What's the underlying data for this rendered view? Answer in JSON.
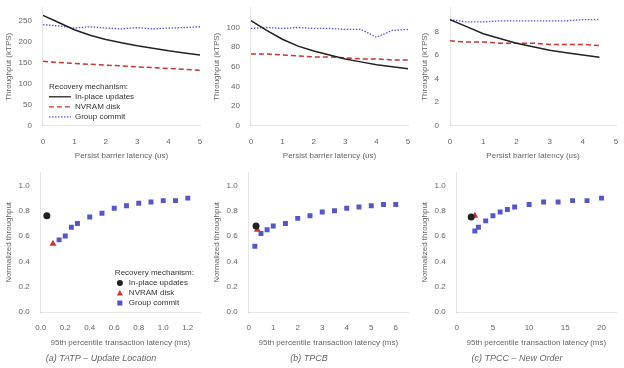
{
  "chart_data": [
    {
      "type": "line",
      "x": [
        0,
        0.5,
        1,
        1.5,
        2,
        2.5,
        3,
        3.5,
        4,
        4.5,
        5
      ],
      "series": [
        {
          "name": "In-place updates",
          "color": "#222222",
          "line_style": "solid",
          "values": [
            262,
            245,
            228,
            215,
            205,
            197,
            190,
            184,
            178,
            173,
            168
          ]
        },
        {
          "name": "NVRAM disk",
          "color": "#cc3333",
          "line_style": "dashed",
          "values": [
            153,
            150,
            148,
            146,
            144,
            142,
            140,
            138,
            136,
            134,
            132
          ]
        },
        {
          "name": "Group commit",
          "color": "#5555cc",
          "line_style": "dotted",
          "values": [
            240,
            237,
            232,
            235,
            232,
            230,
            233,
            230,
            232,
            233,
            235
          ]
        }
      ],
      "xlim": [
        0,
        5
      ],
      "xticks": [
        0,
        1,
        2,
        3,
        4,
        5
      ],
      "ylim": [
        0,
        280
      ],
      "yticks": [
        0,
        50,
        100,
        150,
        200,
        250
      ],
      "xlabel": "Persist barrier latency (us)",
      "ylabel": "Throughput (kTPS)",
      "grid": false,
      "legend": "lower left",
      "legend_title": "Recovery mechanism:"
    },
    {
      "type": "line",
      "x": [
        0,
        0.5,
        1,
        1.5,
        2,
        2.5,
        3,
        3.5,
        4,
        4.5,
        5
      ],
      "series": [
        {
          "name": "In-place updates",
          "color": "#222222",
          "line_style": "solid",
          "values": [
            107,
            97,
            88,
            81,
            76,
            72,
            68,
            65,
            62,
            60,
            58
          ]
        },
        {
          "name": "NVRAM disk",
          "color": "#cc3333",
          "line_style": "dashed",
          "values": [
            73,
            73,
            72,
            71,
            70,
            70,
            69,
            68,
            68,
            67,
            67
          ]
        },
        {
          "name": "Group commit",
          "color": "#5555cc",
          "line_style": "dotted",
          "values": [
            99,
            100,
            99,
            100,
            99,
            99,
            98,
            98,
            90,
            97,
            98
          ]
        }
      ],
      "xlim": [
        0,
        5
      ],
      "xticks": [
        0,
        1,
        2,
        3,
        4,
        5
      ],
      "ylim": [
        0,
        120
      ],
      "yticks": [
        0,
        20,
        40,
        60,
        80,
        100
      ],
      "xlabel": "Persist barrier latency (us)",
      "ylabel": "Throughput (kTPS)",
      "grid": false
    },
    {
      "type": "line",
      "x": [
        0,
        0.5,
        1,
        1.5,
        2,
        2.5,
        3,
        3.5,
        4,
        4.5
      ],
      "series": [
        {
          "name": "In-place updates",
          "color": "#222222",
          "line_style": "solid",
          "values": [
            9.0,
            8.4,
            7.8,
            7.4,
            7.0,
            6.7,
            6.4,
            6.2,
            6.0,
            5.8
          ]
        },
        {
          "name": "NVRAM disk",
          "color": "#cc3333",
          "line_style": "dashed",
          "values": [
            7.2,
            7.1,
            7.1,
            7.0,
            7.0,
            7.0,
            6.9,
            6.9,
            6.9,
            6.8
          ]
        },
        {
          "name": "Group commit",
          "color": "#5555cc",
          "line_style": "dotted",
          "values": [
            9.0,
            8.8,
            8.8,
            8.9,
            8.9,
            8.9,
            8.9,
            8.9,
            9.0,
            9.0
          ]
        }
      ],
      "xlim": [
        0,
        5
      ],
      "xticks": [
        0,
        1,
        2,
        3,
        4,
        5
      ],
      "ylim": [
        0,
        10
      ],
      "yticks": [
        0,
        2,
        4,
        6,
        8
      ],
      "xlabel": "Persist barrier latency (us)",
      "ylabel": "Throughput (kTPS)",
      "grid": false
    },
    {
      "type": "scatter",
      "title": "(a) TATP – Update Location",
      "series": [
        {
          "name": "In-place updates",
          "color": "#222222",
          "marker": "circle",
          "x": [
            0.05
          ],
          "values": [
            0.76
          ]
        },
        {
          "name": "NVRAM disk",
          "color": "#cc3333",
          "marker": "triangle",
          "x": [
            0.1
          ],
          "values": [
            0.54
          ]
        },
        {
          "name": "Group commit",
          "color": "#5555cc",
          "marker": "square",
          "x": [
            0.15,
            0.2,
            0.25,
            0.3,
            0.4,
            0.5,
            0.6,
            0.7,
            0.8,
            0.9,
            1.0,
            1.1,
            1.2
          ],
          "values": [
            0.57,
            0.6,
            0.67,
            0.7,
            0.75,
            0.78,
            0.82,
            0.84,
            0.86,
            0.87,
            0.88,
            0.88,
            0.9
          ]
        }
      ],
      "xlim": [
        0,
        1.3
      ],
      "xticks": [
        {
          "value": 0,
          "label": "0.0"
        },
        0.2,
        0.4,
        0.6,
        0.8,
        {
          "value": 1.0,
          "label": "1.0"
        },
        1.2
      ],
      "ylim": [
        0,
        1.1
      ],
      "yticks": [
        {
          "value": 0,
          "label": "0.0"
        },
        0.2,
        0.4,
        0.6,
        0.8,
        {
          "value": 1.0,
          "label": "1.0"
        }
      ],
      "xlabel": "95th percentile transaction latency (ms)",
      "ylabel": "Normalized throughput",
      "grid": false,
      "legend": "lower right",
      "legend_title": "Recovery mechanism:"
    },
    {
      "type": "scatter",
      "title": "(b) TPCB",
      "series": [
        {
          "name": "In-place updates",
          "color": "#222222",
          "marker": "circle",
          "x": [
            0.3
          ],
          "values": [
            0.68
          ]
        },
        {
          "name": "NVRAM disk",
          "color": "#cc3333",
          "marker": "triangle",
          "x": [
            0.35
          ],
          "values": [
            0.65
          ]
        },
        {
          "name": "Group commit",
          "color": "#5555cc",
          "marker": "square",
          "x": [
            0.25,
            0.5,
            0.75,
            1.0,
            1.5,
            2.0,
            2.5,
            3.0,
            3.5,
            4.0,
            4.5,
            5.0,
            5.5,
            6.0
          ],
          "values": [
            0.52,
            0.62,
            0.65,
            0.68,
            0.7,
            0.74,
            0.76,
            0.79,
            0.8,
            0.82,
            0.83,
            0.84,
            0.85,
            0.85
          ]
        }
      ],
      "xlim": [
        0,
        6.5
      ],
      "xticks": [
        0,
        1,
        2,
        3,
        4,
        5,
        6
      ],
      "ylim": [
        0,
        1.1
      ],
      "yticks": [
        {
          "value": 0,
          "label": "0.0"
        },
        0.2,
        0.4,
        0.6,
        0.8,
        {
          "value": 1.0,
          "label": "1.0"
        }
      ],
      "xlabel": "95th percentile transaction latency (ms)",
      "ylabel": "Normalized throughput",
      "grid": false
    },
    {
      "type": "scatter",
      "title": "(c) TPCC – New Order",
      "series": [
        {
          "name": "In-place updates",
          "color": "#222222",
          "marker": "circle",
          "x": [
            2.0
          ],
          "values": [
            0.75
          ]
        },
        {
          "name": "NVRAM disk",
          "color": "#cc3333",
          "marker": "triangle",
          "x": [
            2.5
          ],
          "values": [
            0.76
          ]
        },
        {
          "name": "Group commit",
          "color": "#5555cc",
          "marker": "square",
          "x": [
            2.5,
            3.0,
            4.0,
            5.0,
            6.0,
            7.0,
            8.0,
            10.0,
            12.0,
            14.0,
            16.0,
            18.0,
            20.0
          ],
          "values": [
            0.64,
            0.67,
            0.72,
            0.76,
            0.79,
            0.81,
            0.83,
            0.85,
            0.87,
            0.87,
            0.88,
            0.88,
            0.9
          ]
        }
      ],
      "xlim": [
        0,
        22
      ],
      "xticks": [
        0,
        5,
        10,
        15,
        20
      ],
      "ylim": [
        0,
        1.1
      ],
      "yticks": [
        {
          "value": 0,
          "label": "0.0"
        },
        0.2,
        0.4,
        0.6,
        0.8,
        {
          "value": 1.0,
          "label": "1.0"
        }
      ],
      "xlabel": "95th percentile transaction latency (ms)",
      "ylabel": "Normalized throughput",
      "grid": false
    }
  ]
}
